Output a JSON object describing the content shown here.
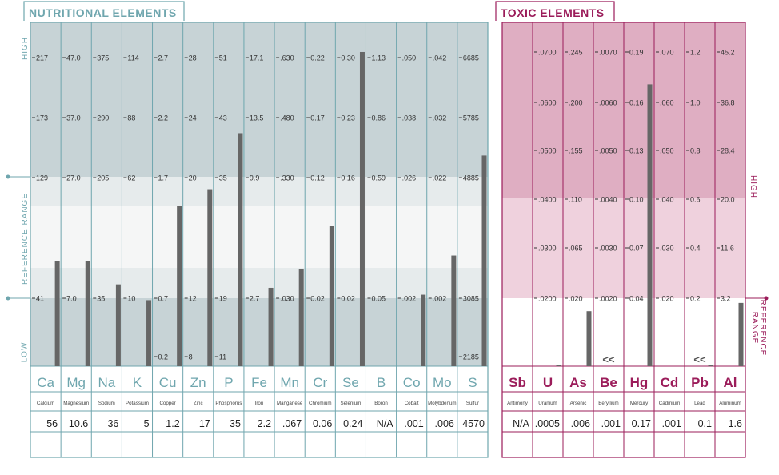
{
  "nutritional": {
    "title": "NUTRITIONAL ELEMENTS",
    "axis_labels": {
      "high": "HIGH",
      "reference": "REFERENCE RANGE",
      "low": "LOW"
    }
  },
  "toxic": {
    "title": "TOXIC ELEMENTS",
    "axis_labels": {
      "high": "HIGH",
      "reference": "REFERENCE RANGE"
    }
  },
  "colors": {
    "nut_border": "#6fa6ae",
    "nut_band_dark": "#c7d3d6",
    "nut_band_light": "#e6ebec",
    "nut_band_center": "#f5f6f6",
    "nut_text": "#6fa6ae",
    "tox_border": "#9b1c5a",
    "tox_band_dark": "#dfaec2",
    "tox_band_light": "#efd1dd",
    "tox_text": "#9b1c5a",
    "bar": "#666666"
  },
  "chart_data": [
    {
      "type": "bar",
      "title": "NUTRITIONAL ELEMENTS",
      "scale_note": "each element has its own tick scale; bar value is shown in the result row",
      "elements": [
        {
          "symbol": "Ca",
          "name": "Calcium",
          "result": "56",
          "ticks": [
            "217",
            "173",
            "129",
            "41"
          ],
          "low_tick": ""
        },
        {
          "symbol": "Mg",
          "name": "Magnesium",
          "result": "10.6",
          "ticks": [
            "47.0",
            "37.0",
            "27.0",
            "7.0"
          ],
          "low_tick": ""
        },
        {
          "symbol": "Na",
          "name": "Sodium",
          "result": "36",
          "ticks": [
            "375",
            "290",
            "205",
            "35"
          ],
          "low_tick": ""
        },
        {
          "symbol": "K",
          "name": "Potassium",
          "result": "5",
          "ticks": [
            "114",
            "88",
            "62",
            "10"
          ],
          "low_tick": ""
        },
        {
          "symbol": "Cu",
          "name": "Copper",
          "result": "1.2",
          "ticks": [
            "2.7",
            "2.2",
            "1.7",
            "0.7"
          ],
          "low_tick": "0.2"
        },
        {
          "symbol": "Zn",
          "name": "Zinc",
          "result": "17",
          "ticks": [
            "28",
            "24",
            "20",
            "12"
          ],
          "low_tick": "8"
        },
        {
          "symbol": "P",
          "name": "Phosphorus",
          "result": "35",
          "ticks": [
            "51",
            "43",
            "35",
            "19"
          ],
          "low_tick": "11"
        },
        {
          "symbol": "Fe",
          "name": "Iron",
          "result": "2.2",
          "ticks": [
            "17.1",
            "13.5",
            "9.9",
            "2.7"
          ],
          "low_tick": ""
        },
        {
          "symbol": "Mn",
          "name": "Manganese",
          "result": ".067",
          "ticks": [
            ".630",
            ".480",
            ".330",
            ".030"
          ],
          "low_tick": ""
        },
        {
          "symbol": "Cr",
          "name": "Chromium",
          "result": "0.06",
          "ticks": [
            "0.22",
            "0.17",
            "0.12",
            "0.02"
          ],
          "low_tick": ""
        },
        {
          "symbol": "Se",
          "name": "Selenium",
          "result": "0.24",
          "ticks": [
            "0.30",
            "0.23",
            "0.16",
            "0.02"
          ],
          "low_tick": ""
        },
        {
          "symbol": "B",
          "name": "Boron",
          "result": "N/A",
          "ticks": [
            "1.13",
            "0.86",
            "0.59",
            "0.05"
          ],
          "low_tick": ""
        },
        {
          "symbol": "Co",
          "name": "Cobalt",
          "result": ".001",
          "ticks": [
            ".050",
            ".038",
            ".026",
            ".002"
          ],
          "low_tick": ""
        },
        {
          "symbol": "Mo",
          "name": "Molybdenum",
          "result": ".006",
          "ticks": [
            ".042",
            ".032",
            ".022",
            ".002"
          ],
          "low_tick": ""
        },
        {
          "symbol": "S",
          "name": "Sulfur",
          "result": "4570",
          "ticks": [
            "6685",
            "5785",
            "4885",
            "3085"
          ],
          "low_tick": "2185"
        }
      ],
      "bar_levels": [
        0.305,
        0.305,
        0.238,
        0.192,
        0.467,
        0.515,
        0.678,
        0.228,
        0.283,
        0.409,
        0.914,
        0.0,
        0.208,
        0.322,
        0.613
      ]
    },
    {
      "type": "bar",
      "title": "TOXIC ELEMENTS",
      "scale_note": "each element has its own tick scale; bar value is shown in the result row",
      "elements": [
        {
          "symbol": "Sb",
          "name": "Antimony",
          "result": "N/A",
          "ticks": [],
          "marker": ""
        },
        {
          "symbol": "U",
          "name": "Uranium",
          "result": ".0005",
          "ticks": [
            ".0700",
            ".0600",
            ".0500",
            ".0400",
            ".0300",
            ".0200"
          ],
          "marker": ""
        },
        {
          "symbol": "As",
          "name": "Arsenic",
          "result": ".006",
          "ticks": [
            ".245",
            ".200",
            ".155",
            ".110",
            ".065",
            ".020"
          ],
          "marker": ""
        },
        {
          "symbol": "Be",
          "name": "Beryllium",
          "result": ".001",
          "ticks": [
            ".0070",
            ".0060",
            ".0050",
            ".0040",
            ".0030",
            ".0020"
          ],
          "marker": "<<"
        },
        {
          "symbol": "Hg",
          "name": "Mercury",
          "result": "0.17",
          "ticks": [
            "0.19",
            "0.16",
            "0.13",
            "0.10",
            "0.07",
            "0.04"
          ],
          "marker": ""
        },
        {
          "symbol": "Cd",
          "name": "Cadmium",
          "result": ".001",
          "ticks": [
            ".070",
            ".060",
            ".050",
            ".040",
            ".030",
            ".020"
          ],
          "marker": ""
        },
        {
          "symbol": "Pb",
          "name": "Lead",
          "result": "0.1",
          "ticks": [
            "1.2",
            "1.0",
            "0.8",
            "0.6",
            "0.4",
            "0.2"
          ],
          "marker": "<<"
        },
        {
          "symbol": "Al",
          "name": "Aluminum",
          "result": "1.6",
          "ticks": [
            "45.2",
            "36.8",
            "28.4",
            "20.0",
            "11.6",
            "3.2"
          ],
          "marker": ""
        }
      ],
      "bar_levels": [
        0.0,
        0.004,
        0.16,
        0.0,
        0.82,
        0.0,
        0.004,
        0.184
      ]
    }
  ]
}
